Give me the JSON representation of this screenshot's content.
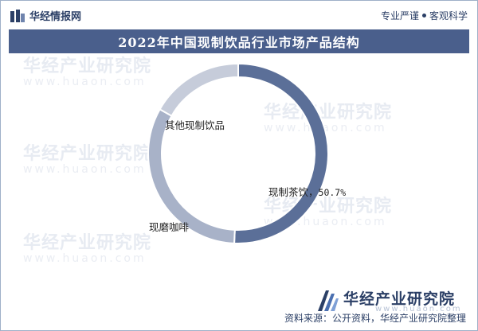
{
  "header": {
    "brand_name": "华经情报网",
    "slogan_left": "专业严谨",
    "slogan_right": "客观科学"
  },
  "watermark": {
    "text": "华经产业研究院",
    "url": "www.huaon.com"
  },
  "colors": {
    "title_band": "#4a5f8c",
    "brand": "#2b3f66"
  },
  "chart_data": {
    "type": "pie",
    "donut": true,
    "title": "2022年中国现制饮品行业市场产品结构",
    "categories": [
      "现制茶饮",
      "现磨咖啡",
      "其他现制饮品"
    ],
    "values": [
      50.7,
      32.5,
      16.8
    ],
    "colors": [
      "#5b6f98",
      "#a8b2c8",
      "#c6ccda"
    ],
    "labels": {
      "tea": {
        "name": "现制茶饮",
        "pct": "50.7%"
      },
      "coffee": {
        "name": "现磨咖啡"
      },
      "other": {
        "name": "其他现制饮品"
      }
    }
  },
  "footer": {
    "logo_text": "华经产业研究院",
    "logo_url": "www.huaon.com",
    "source": "资料来源：公开资料，华经产业研究院整理"
  }
}
